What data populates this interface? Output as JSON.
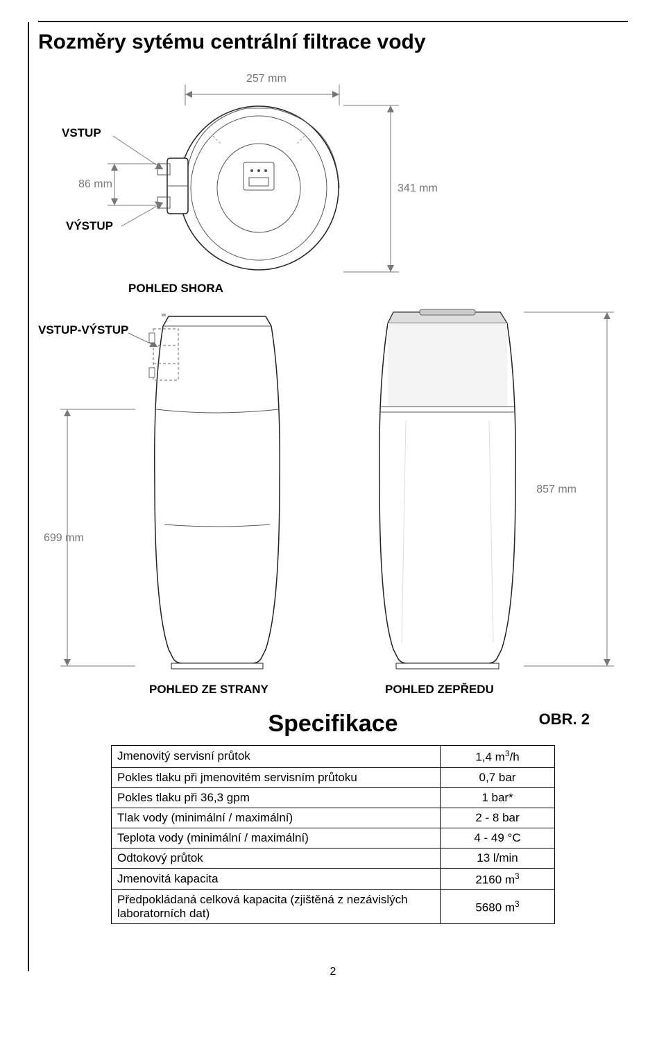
{
  "title": "Rozměry sytému centrální filtrace vody",
  "labels": {
    "vstup": "VSTUP",
    "vystup": "VÝSTUP",
    "pohled_shora": "POHLED SHORA",
    "vstup_vystup": "VSTUP-VÝSTUP",
    "pohled_ze_strany": "POHLED ZE STRANY",
    "pohled_zepredu": "POHLED ZEPŘEDU"
  },
  "dimensions": {
    "top_width": "257 mm",
    "inlet_offset": "86 mm",
    "top_height": "341 mm",
    "side_height": "699 mm",
    "front_height": "857 mm"
  },
  "spec_heading": "Specifikace",
  "figure_label": "OBR. 2",
  "page_number": "2",
  "table": {
    "rows": [
      {
        "label": "Jmenovitý servisní průtok",
        "value_html": "1,4 m<sup>3</sup>/h"
      },
      {
        "label": "Pokles tlaku při jmenovitém servisním průtoku",
        "value_html": "0,7 bar"
      },
      {
        "label": "Pokles tlaku při 36,3 gpm",
        "value_html": "1 bar*"
      },
      {
        "label": "Tlak vody (minimální / maximální)",
        "value_html": "2 - 8 bar"
      },
      {
        "label": "Teplota vody (minimální / maximální)",
        "value_html": "4 - 49 °C"
      },
      {
        "label": "Odtokový průtok",
        "value_html": "13 l/min"
      },
      {
        "label": "Jmenovitá kapacita",
        "value_html": "2160 m<sup>3</sup>"
      },
      {
        "label": "Předpokládaná celková kapacita (zjištěná z nezávislých laboratorních dat)",
        "value_html": "5680 m<sup>3</sup>"
      }
    ]
  },
  "colors": {
    "text": "#000000",
    "dim": "#777777",
    "outline": "#222222",
    "shade": "#eeeeee",
    "bg": "#ffffff"
  }
}
